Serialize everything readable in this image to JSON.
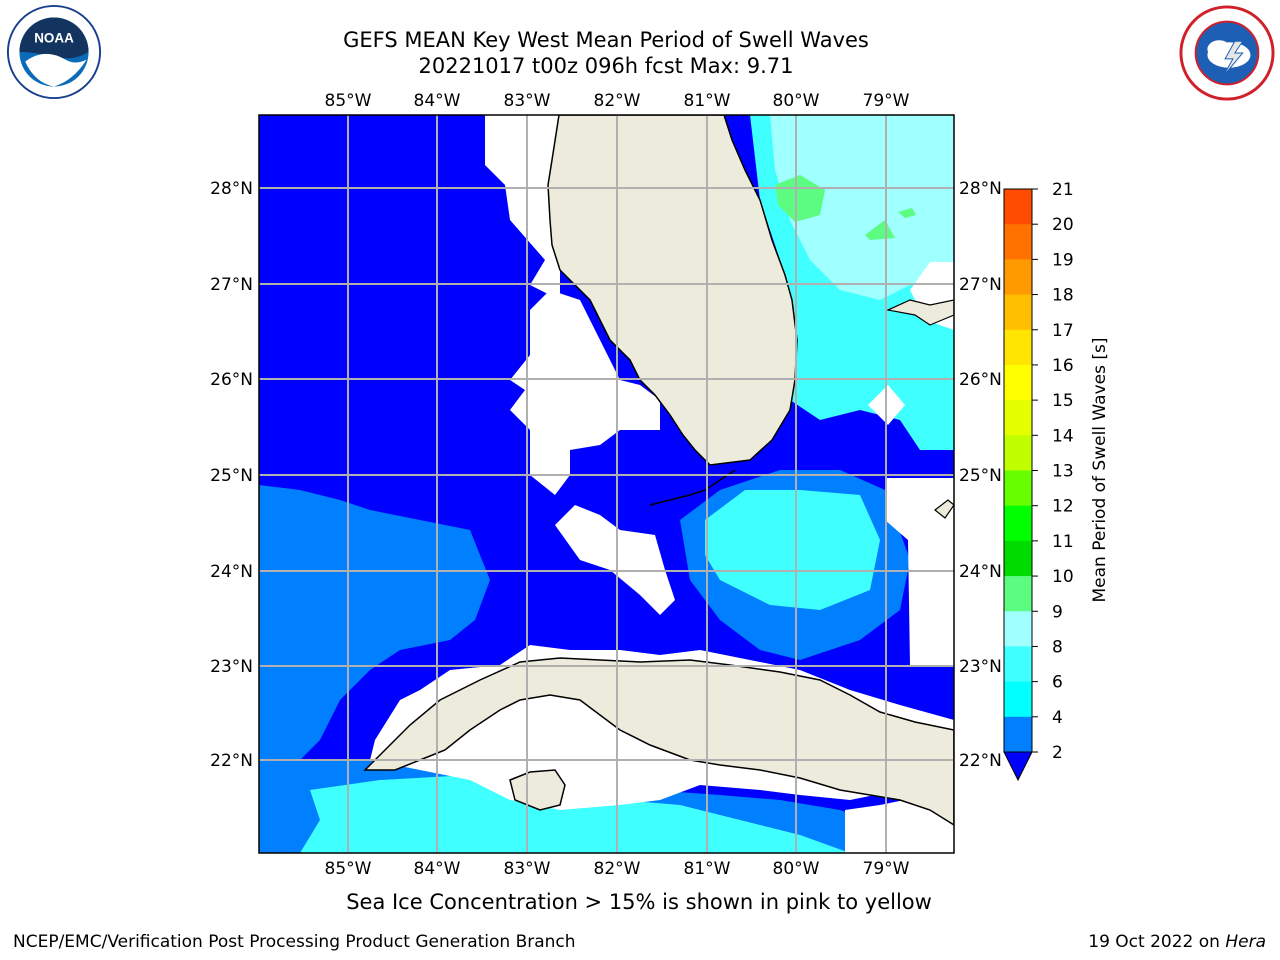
{
  "title": {
    "line1": "GEFS MEAN Key West Mean Period of Swell Waves",
    "line2": "20221017 t00z 096h fcst   Max: 9.71"
  },
  "logos": {
    "noaa": {
      "icon": "noaa-logo",
      "text": "NOAA"
    },
    "nws": {
      "icon": "nws-logo"
    }
  },
  "map": {
    "lon_labels": [
      "85°W",
      "84°W",
      "83°W",
      "82°W",
      "81°W",
      "80°W",
      "79°W"
    ],
    "lat_labels": [
      "28°N",
      "27°N",
      "26°N",
      "25°N",
      "24°N",
      "23°N",
      "22°N"
    ],
    "land_color": "#ecebdc",
    "grid": true
  },
  "colorbar": {
    "title": "Mean Period of Swell Waves [s]",
    "ticks": [
      "21",
      "20",
      "19",
      "18",
      "17",
      "16",
      "15",
      "14",
      "13",
      "12",
      "11",
      "10",
      "9",
      "8",
      "6",
      "4",
      "2"
    ],
    "colors": [
      "#ff0000",
      "#ff2600",
      "#ff4c00",
      "#ff7200",
      "#ff9900",
      "#ffbf00",
      "#ffe500",
      "#ffff00",
      "#e5ff00",
      "#bfff00",
      "#66ff00",
      "#00ff00",
      "#00dc00",
      "#5cfc80",
      "#a0ffff",
      "#40ffff",
      "#00ffff",
      "#0080ff",
      "#0000ff"
    ]
  },
  "chart_data": {
    "type": "heatmap",
    "variable": "Mean Period of Swell Waves",
    "unit": "s",
    "max": 9.71,
    "levels": [
      2,
      4,
      6,
      8,
      9,
      10,
      11,
      12,
      13,
      14,
      15,
      16,
      17,
      18,
      19,
      20,
      21
    ]
  },
  "subtitle": "Sea Ice Concentration > 15% is shown in pink to yellow",
  "footer": {
    "left": "NCEP/EMC/Verification Post Processing Product Generation Branch",
    "date": "19 Oct 2022 on ",
    "host": "Hera"
  }
}
